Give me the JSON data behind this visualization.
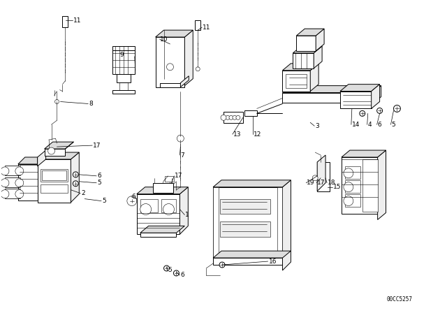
{
  "bg_color": "#ffffff",
  "line_color": "#000000",
  "diagram_code": "00CC5257",
  "figsize": [
    6.4,
    4.48
  ],
  "dpi": 100,
  "lw_main": 0.7,
  "lw_thin": 0.4,
  "label_fs": 6.5,
  "code_fs": 5.5,
  "labels": [
    [
      "11",
      104,
      28,
      "left"
    ],
    [
      "8",
      126,
      148,
      "left"
    ],
    [
      "17",
      132,
      208,
      "left"
    ],
    [
      "6",
      138,
      252,
      "left"
    ],
    [
      "5",
      138,
      262,
      "left"
    ],
    [
      "2",
      115,
      277,
      "left"
    ],
    [
      "5",
      145,
      288,
      "left"
    ],
    [
      "9",
      170,
      78,
      "left"
    ],
    [
      "10",
      228,
      55,
      "left"
    ],
    [
      "11",
      290,
      38,
      "left"
    ],
    [
      "7",
      258,
      222,
      "left"
    ],
    [
      "17",
      250,
      252,
      "left"
    ],
    [
      "1",
      265,
      308,
      "left"
    ],
    [
      "6",
      188,
      282,
      "left"
    ],
    [
      "5",
      240,
      388,
      "left"
    ],
    [
      "6",
      258,
      395,
      "left"
    ],
    [
      "13",
      334,
      192,
      "left"
    ],
    [
      "12",
      363,
      192,
      "left"
    ],
    [
      "3",
      452,
      180,
      "left"
    ],
    [
      "14",
      505,
      178,
      "left"
    ],
    [
      "4",
      528,
      178,
      "left"
    ],
    [
      "6",
      542,
      178,
      "left"
    ],
    [
      "5",
      562,
      178,
      "left"
    ],
    [
      "15",
      478,
      268,
      "left"
    ],
    [
      "19",
      440,
      262,
      "left"
    ],
    [
      "17",
      455,
      262,
      "left"
    ],
    [
      "18",
      470,
      262,
      "left"
    ],
    [
      "16",
      385,
      375,
      "left"
    ]
  ]
}
